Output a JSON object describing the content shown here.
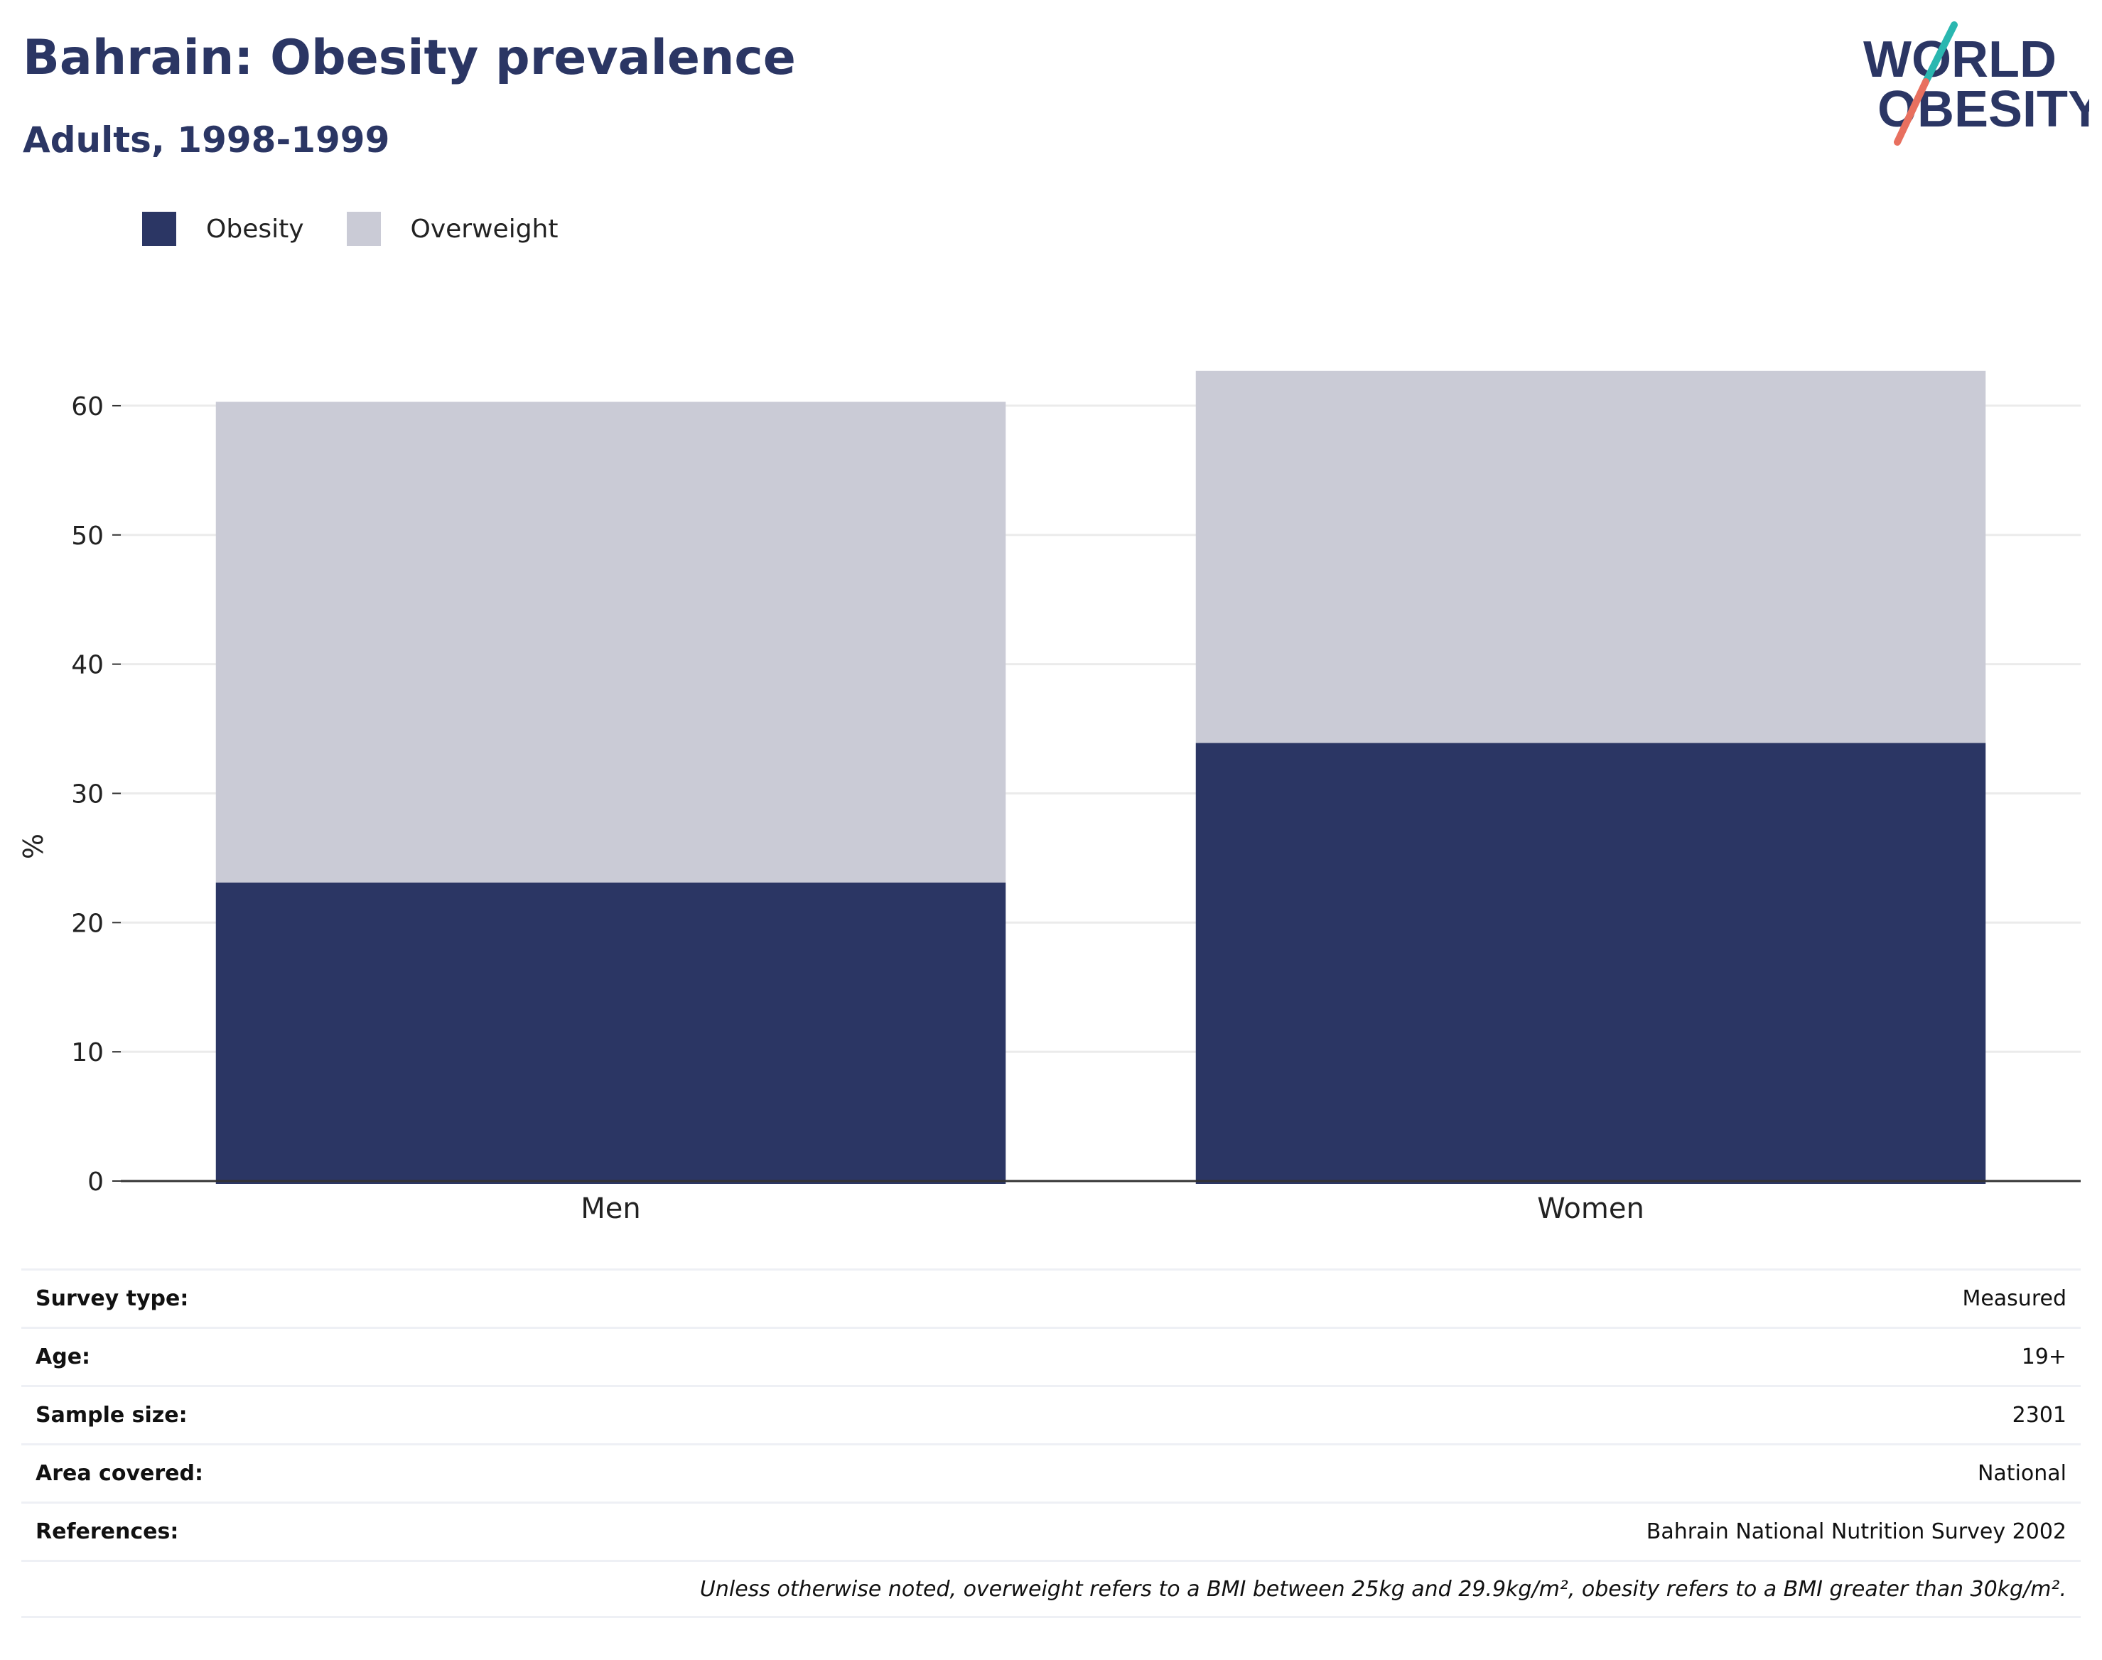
{
  "header": {
    "title": "Bahrain: Obesity prevalence",
    "subtitle": "Adults, 1998-1999"
  },
  "logo": {
    "line1": "WORLD",
    "line2": "OBESITY",
    "text_color": "#2b3664",
    "slash_color_top": "#2ab7b0",
    "slash_color_bottom": "#e8705f"
  },
  "legend": {
    "items": [
      {
        "label": "Obesity",
        "color": "#2b3664"
      },
      {
        "label": "Overweight",
        "color": "#cacbd6"
      }
    ]
  },
  "chart_data": {
    "type": "bar",
    "stacked": true,
    "categories": [
      "Men",
      "Women"
    ],
    "series": [
      {
        "name": "Obesity",
        "values": [
          23.1,
          33.9
        ],
        "color": "#2b3664"
      },
      {
        "name": "Overweight",
        "values": [
          37.2,
          28.8
        ],
        "color": "#cacbd6"
      }
    ],
    "title": "Bahrain: Obesity prevalence",
    "subtitle": "Adults, 1998-1999",
    "xlabel": "",
    "ylabel": "%",
    "ylim": [
      0,
      65
    ],
    "yticks": [
      0,
      10,
      20,
      30,
      40,
      50,
      60
    ],
    "grid": true,
    "legend_position": "top-left"
  },
  "info": {
    "rows": [
      {
        "label": "Survey type:",
        "value": "Measured"
      },
      {
        "label": "Age:",
        "value": "19+"
      },
      {
        "label": "Sample size:",
        "value": "2301"
      },
      {
        "label": "Area covered:",
        "value": "National"
      },
      {
        "label": "References:",
        "value": "Bahrain National Nutrition Survey 2002"
      }
    ],
    "note": "Unless otherwise noted, overweight refers to a BMI between 25kg and 29.9kg/m², obesity refers to a BMI greater than 30kg/m²."
  }
}
